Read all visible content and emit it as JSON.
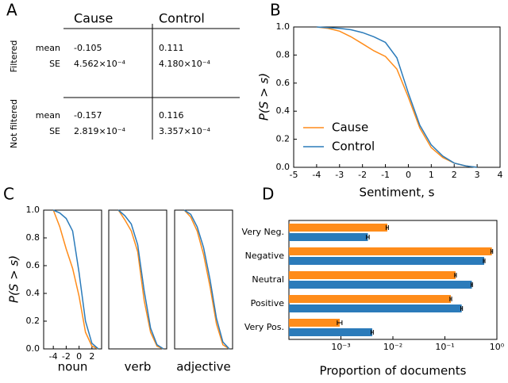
{
  "table": {
    "panel_label": "A",
    "columns": [
      "Cause",
      "Control"
    ],
    "groups": [
      {
        "name": "Filtered",
        "rows": [
          {
            "label": "mean",
            "cells": [
              "-0.105",
              "0.111"
            ]
          },
          {
            "label": "SE",
            "cells": [
              "4.562×10⁻⁴",
              "4.180×10⁻⁴"
            ]
          }
        ]
      },
      {
        "name": "Not filtered",
        "rows": [
          {
            "label": "mean",
            "cells": [
              "-0.157",
              "0.116"
            ]
          },
          {
            "label": "SE",
            "cells": [
              "2.819×10⁻⁴",
              "3.357×10⁻⁴"
            ]
          }
        ]
      }
    ]
  },
  "chart_data": [
    {
      "type": "line",
      "panel_label": "B",
      "xlabel": "Sentiment, s",
      "ylabel": "P(S > s)",
      "xlim": [
        -5,
        4
      ],
      "xticks": [
        -5,
        -4,
        -3,
        -2,
        -1,
        0,
        1,
        2,
        3,
        4
      ],
      "ylim": [
        0,
        1
      ],
      "yticks": [
        {
          "value": 0,
          "label": "0.0"
        },
        0.2,
        0.4,
        0.6,
        0.8,
        {
          "value": 1,
          "label": "1.0"
        }
      ],
      "legend": "lower left",
      "series": [
        {
          "name": "Cause",
          "color": "#ff8c1a",
          "x": [
            -4,
            -3.5,
            -3,
            -2.5,
            -2,
            -1.5,
            -1,
            -0.5,
            0,
            0.5,
            1,
            1.5,
            2,
            2.5,
            3
          ],
          "values": [
            1,
            0.99,
            0.97,
            0.93,
            0.88,
            0.83,
            0.79,
            0.7,
            0.5,
            0.28,
            0.14,
            0.07,
            0.03,
            0.01,
            0
          ]
        },
        {
          "name": "Control",
          "color": "#2b7bba",
          "x": [
            -4,
            -3.5,
            -3,
            -2.5,
            -2,
            -1.5,
            -1,
            -0.5,
            0,
            0.5,
            1,
            1.5,
            2,
            2.5,
            3
          ],
          "values": [
            1,
            0.995,
            0.99,
            0.98,
            0.96,
            0.93,
            0.89,
            0.78,
            0.53,
            0.3,
            0.16,
            0.08,
            0.03,
            0.01,
            0
          ]
        }
      ]
    },
    {
      "type": "line",
      "panel_label": "C",
      "xlabel": "noun",
      "ylabel": "P(S > s)",
      "xlim": [
        -5.5,
        3.5
      ],
      "xticks": [
        -4,
        -2,
        0,
        2
      ],
      "ylim": [
        0,
        1
      ],
      "yticks": [
        {
          "value": 0,
          "label": "0.0"
        },
        0.2,
        0.4,
        0.6,
        0.8,
        {
          "value": 1,
          "label": "1.0"
        }
      ],
      "series": [
        {
          "color": "#ff8c1a",
          "x": [
            -4,
            -3,
            -2,
            -1,
            0,
            1,
            2,
            3
          ],
          "values": [
            1,
            0.88,
            0.72,
            0.58,
            0.38,
            0.12,
            0.02,
            0
          ]
        },
        {
          "color": "#2b7bba",
          "x": [
            -4,
            -3,
            -2,
            -1,
            0,
            1,
            2,
            3
          ],
          "values": [
            1,
            0.98,
            0.94,
            0.85,
            0.55,
            0.2,
            0.04,
            0
          ]
        }
      ]
    },
    {
      "type": "line",
      "xlabel": "verb",
      "xlim": [
        -5.5,
        3.5
      ],
      "ylim": [
        0,
        1
      ],
      "series": [
        {
          "color": "#ff8c1a",
          "x": [
            -4,
            -3,
            -2,
            -1,
            0,
            1,
            2,
            3
          ],
          "values": [
            1,
            0.93,
            0.85,
            0.7,
            0.35,
            0.12,
            0.02,
            0
          ]
        },
        {
          "color": "#2b7bba",
          "x": [
            -4,
            -3,
            -2,
            -1,
            0,
            1,
            2,
            3
          ],
          "values": [
            1,
            0.96,
            0.9,
            0.75,
            0.42,
            0.15,
            0.03,
            0
          ]
        }
      ]
    },
    {
      "type": "line",
      "xlabel": "adjective",
      "xlim": [
        -5.5,
        3.5
      ],
      "ylim": [
        0,
        1
      ],
      "series": [
        {
          "color": "#ff8c1a",
          "x": [
            -4,
            -3,
            -2,
            -1,
            0,
            1,
            2,
            3
          ],
          "values": [
            1,
            0.95,
            0.85,
            0.68,
            0.45,
            0.18,
            0.03,
            0
          ]
        },
        {
          "color": "#2b7bba",
          "x": [
            -4,
            -3,
            -2,
            -1,
            0,
            1,
            2,
            3
          ],
          "values": [
            1,
            0.97,
            0.88,
            0.73,
            0.5,
            0.22,
            0.05,
            0
          ]
        }
      ]
    },
    {
      "type": "barh",
      "panel_label": "D",
      "xlabel": "Proportion of documents",
      "log_x": true,
      "categories": [
        "Very Neg.",
        "Negative",
        "Neutral",
        "Positive",
        "Very Pos."
      ],
      "xlim": [
        0.0001,
        1
      ],
      "xticks": [
        {
          "value": 0.001,
          "label": "10⁻³"
        },
        {
          "value": 0.01,
          "label": "10⁻²"
        },
        {
          "value": 0.1,
          "label": "10⁻¹"
        },
        {
          "value": 1,
          "label": "10⁰"
        }
      ],
      "series": [
        {
          "color": "#ff8c1a",
          "values": [
            0.0078,
            0.8,
            0.16,
            0.13,
            0.00095
          ],
          "errors": [
            0.0004,
            0.03,
            0.006,
            0.005,
            0.0001
          ]
        },
        {
          "color": "#2b7bba",
          "values": [
            0.0033,
            0.57,
            0.33,
            0.21,
            0.004
          ],
          "errors": [
            0.0002,
            0.02,
            0.01,
            0.008,
            0.0002
          ]
        }
      ]
    }
  ]
}
